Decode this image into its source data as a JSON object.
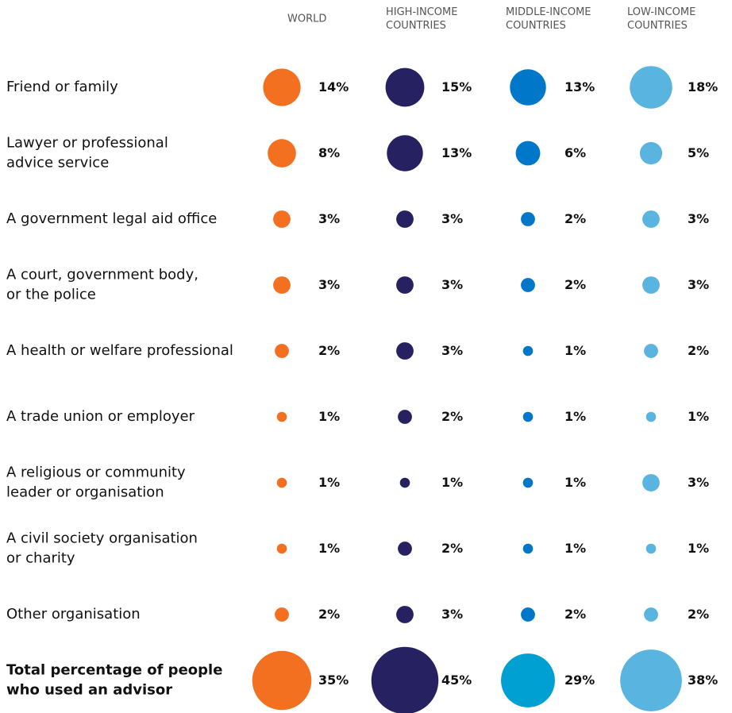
{
  "chart_data": {
    "type": "bubble",
    "categories": [
      "Friend or family",
      "Lawyer or professional\nadvice service",
      "A government legal aid office",
      "A court, government body,\nor the police",
      "A health or welfare professional",
      "A trade union or employer",
      "A religious or community\nleader or organisation",
      "A civil society organisation\nor charity",
      "Other organisation",
      "Total percentage of people\nwho used an advisor"
    ],
    "series": [
      {
        "name": "WORLD",
        "color": "#f37021",
        "total_color": "#f37021",
        "values": [
          14,
          8,
          3,
          3,
          2,
          1,
          1,
          1,
          2,
          35
        ],
        "value_labels": [
          "14%",
          "8%",
          "3%",
          "3%",
          "2%",
          "1%",
          "1%",
          "1%",
          "2%",
          "35%"
        ]
      },
      {
        "name": "HIGH-INCOME\nCOUNTRIES",
        "color": "#262262",
        "total_color": "#262262",
        "values": [
          15,
          13,
          3,
          3,
          3,
          2,
          1,
          2,
          3,
          45
        ],
        "value_labels": [
          "15%",
          "13%",
          "3%",
          "3%",
          "3%",
          "2%",
          "1%",
          "2%",
          "3%",
          "45%"
        ]
      },
      {
        "name": "MIDDLE-INCOME\nCOUNTRIES",
        "color": "#0077c8",
        "total_color": "#00a0d2",
        "values": [
          13,
          6,
          2,
          2,
          1,
          1,
          1,
          1,
          2,
          29
        ],
        "value_labels": [
          "13%",
          "6%",
          "2%",
          "2%",
          "1%",
          "1%",
          "1%",
          "1%",
          "2%",
          "29%"
        ]
      },
      {
        "name": "LOW-INCOME\nCOUNTRIES",
        "color": "#5ab4e0",
        "total_color": "#5ab4e0",
        "values": [
          18,
          5,
          3,
          3,
          2,
          1,
          3,
          1,
          2,
          38
        ],
        "value_labels": [
          "18%",
          "5%",
          "3%",
          "3%",
          "2%",
          "1%",
          "3%",
          "1%",
          "2%",
          "38%"
        ]
      }
    ]
  }
}
